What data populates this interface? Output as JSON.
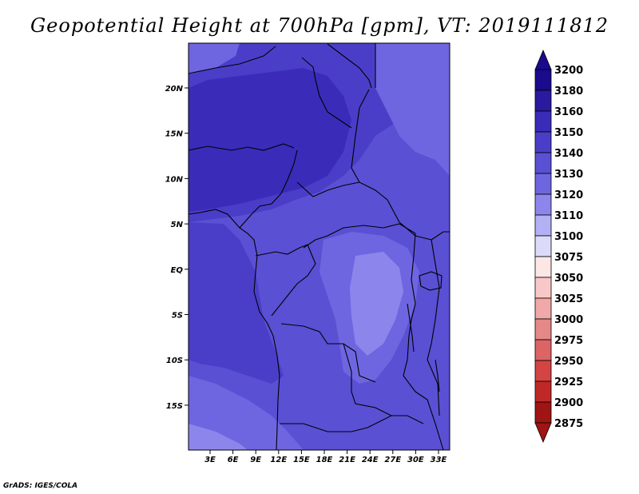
{
  "title": "Geopotential Height at 700hPa [gpm], VT: 2019111812",
  "credit": "GrADS: IGES/COLA",
  "map": {
    "lat_ticks": [
      "20N",
      "15N",
      "10N",
      "5N",
      "EQ",
      "5S",
      "10S",
      "15S"
    ],
    "lon_ticks": [
      "3E",
      "6E",
      "9E",
      "12E",
      "15E",
      "18E",
      "21E",
      "24E",
      "27E",
      "30E",
      "33E"
    ]
  },
  "colorbar": {
    "levels": [
      "3200",
      "3180",
      "3160",
      "3150",
      "3140",
      "3130",
      "3120",
      "3110",
      "3100",
      "3075",
      "3050",
      "3025",
      "3000",
      "2975",
      "2950",
      "2925",
      "2900",
      "2875"
    ],
    "colors": [
      "#1a0a8c",
      "#2a1aa0",
      "#3a2cb8",
      "#4a3ec8",
      "#5a50d4",
      "#6e66e0",
      "#8c86ec",
      "#b4b0f4",
      "#dcdaf8",
      "#fce6e6",
      "#f8c8c8",
      "#f0a8a8",
      "#e48888",
      "#dc6464",
      "#d44444",
      "#c02828",
      "#a01414"
    ]
  },
  "field_colors": {
    "darkest": "#3a2cb8",
    "dark": "#4a3ec8",
    "mid": "#5a50d4",
    "light": "#6e66e0",
    "lighter": "#8c86ec",
    "palest": "#b4b0f4"
  }
}
